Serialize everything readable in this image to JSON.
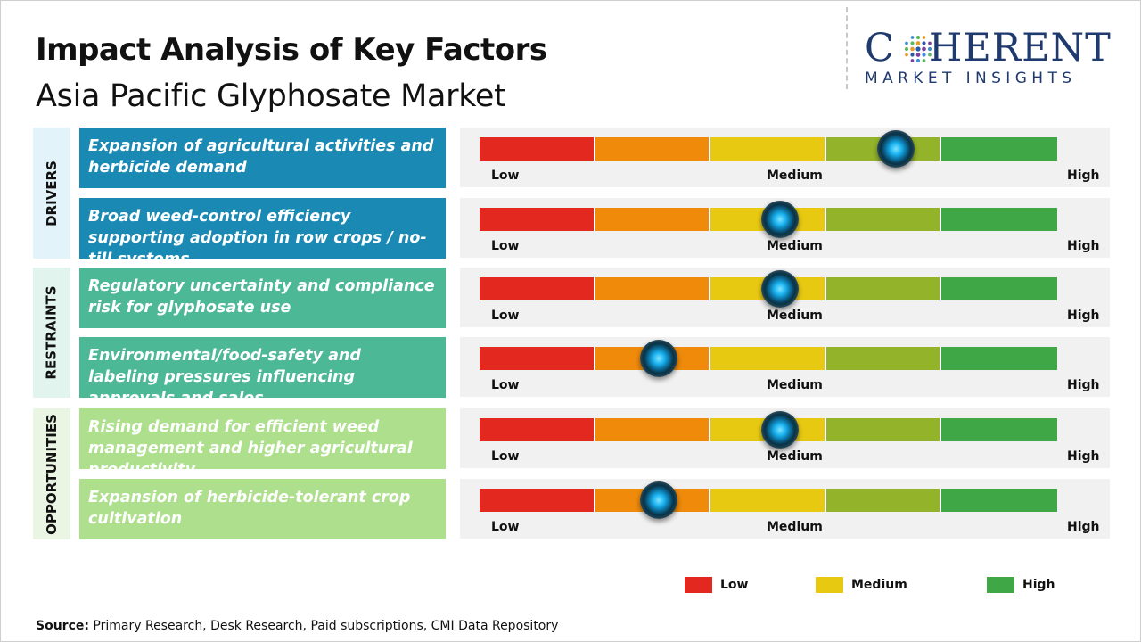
{
  "header": {
    "title": "Impact Analysis of Key Factors",
    "subtitle": "Asia Pacific Glyphosate Market"
  },
  "logo": {
    "word_prefix": "C",
    "word_suffix": "HERENT",
    "tagline": "MARKET INSIGHTS",
    "color": "#1f3a6e"
  },
  "scale": {
    "segments": [
      {
        "color": "#e3291f"
      },
      {
        "color": "#ef8a0a"
      },
      {
        "color": "#e8c912"
      },
      {
        "color": "#93b42a"
      },
      {
        "color": "#3fa745"
      }
    ],
    "low_label": "Low",
    "medium_label": "Medium",
    "high_label": "High"
  },
  "chart_data": {
    "type": "impact-gauge",
    "title": "Impact Analysis of Key Factors",
    "subtitle": "Asia Pacific Glyphosate Market",
    "scale_range": [
      0,
      1
    ],
    "categories": [
      {
        "name": "DRIVERS",
        "color": "#e2f3fa",
        "factor_color": "#1a8ab5",
        "factors": [
          {
            "text": "Expansion of agricultural activities and herbicide demand",
            "impact": 0.72
          },
          {
            "text": "Broad weed-control efficiency supporting adoption in row crops / no-till systems",
            "impact": 0.52
          }
        ]
      },
      {
        "name": "RESTRAINTS",
        "color": "#e2f4ee",
        "factor_color": "#4cb896",
        "factors": [
          {
            "text": "Regulatory uncertainty and compliance risk for glyphosate use",
            "impact": 0.52
          },
          {
            "text": "Environmental/food-safety and labeling pressures influencing approvals and sales",
            "impact": 0.31
          }
        ]
      },
      {
        "name": "OPPORTUNITIES",
        "color": "#eaf6e3",
        "factor_color": "#addf8c",
        "factors": [
          {
            "text": "Rising demand for efficient weed management and higher agricultural productivity",
            "impact": 0.52
          },
          {
            "text": "Expansion of herbicide-tolerant crop cultivation",
            "impact": 0.31
          }
        ]
      }
    ],
    "legend": [
      {
        "label": "Low",
        "color": "#e3291f"
      },
      {
        "label": "Medium",
        "color": "#e8c912"
      },
      {
        "label": "High",
        "color": "#3fa745"
      }
    ]
  },
  "footer": {
    "source_label": "Source:",
    "source_text": " Primary Research, Desk Research, Paid subscriptions, CMI Data Repository"
  }
}
